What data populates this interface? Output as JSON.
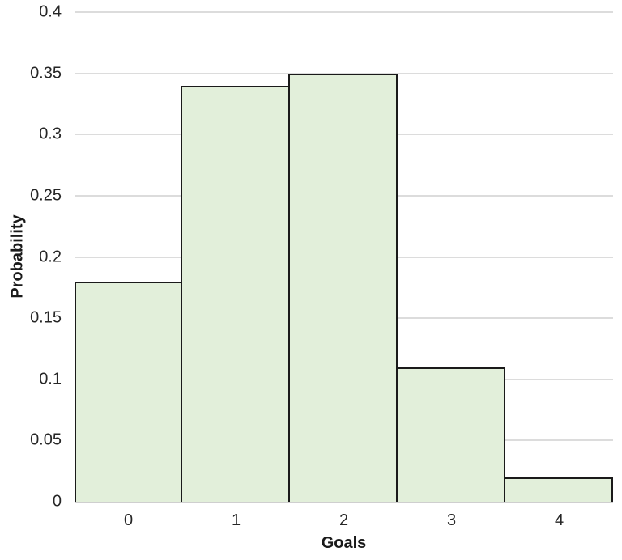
{
  "chart_data": {
    "type": "bar",
    "subtype": "histogram",
    "title": "",
    "categories": [
      "0",
      "1",
      "2",
      "3",
      "4"
    ],
    "values": [
      0.18,
      0.34,
      0.35,
      0.11,
      0.02
    ],
    "xlabel": "Goals",
    "ylabel": "Probability",
    "ylim": [
      0,
      0.4
    ],
    "ytick_step": 0.05,
    "ytick_labels": [
      "0",
      "0.05",
      "0.1",
      "0.15",
      "0.2",
      "0.25",
      "0.3",
      "0.35",
      "0.4"
    ],
    "grid": true,
    "legend": false,
    "bar_gap": 0,
    "colors": {
      "bar_fill": "#e2efda",
      "bar_border": "#1a1a1a",
      "gridline": "#dcdcdc",
      "axis_line": "#cfcfcf",
      "tick_text": "#262626",
      "title_text": "#1a1a1a",
      "background": "#ffffff"
    }
  }
}
